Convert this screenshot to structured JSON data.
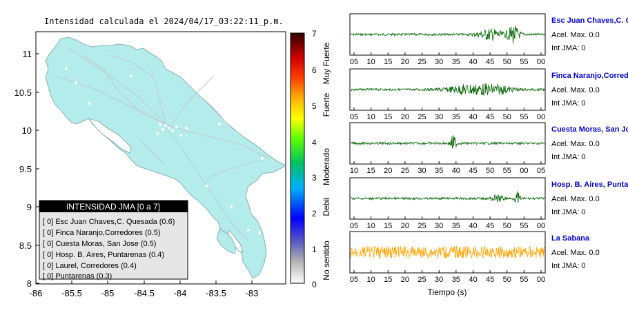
{
  "map": {
    "title": "Intensidad calculada el 2024/04/17_03:22:11_p.m.",
    "lat_ticks": [
      "11",
      "10.5",
      "10",
      "9.5",
      "9",
      "8.5",
      "8"
    ],
    "lon_ticks": [
      "-86",
      "-85.5",
      "-85",
      "-84.5",
      "-84",
      "-83.5",
      "-83"
    ],
    "land_color": "#b4ebeb",
    "legend": {
      "title": "INTENSIDAD JMA [0 a 7]",
      "items": [
        "[ 0]  Esc Juan Chaves,C. Quesada (0.6)",
        "[ 0]  Finca Naranjo,Corredores (0.5)",
        "[ 0]  Cuesta Moras, San Jose (0.5)",
        "[ 0]  Hosp. B. Aires, Puntarenas (0.4)",
        "[ 0]  Laurel, Corredores (0.4)",
        "[ 0]  Puntarenas (0.3)"
      ]
    }
  },
  "colorbar": {
    "ticks": [
      "7",
      "6",
      "5",
      "4",
      "3",
      "2",
      "1",
      "0"
    ],
    "labels": [
      "Muy Fuerte",
      "Fuerte",
      "Moderado",
      "Debil",
      "No sentido"
    ]
  },
  "traces": {
    "stations": [
      {
        "name": "Esc Juan Chaves,C. Quesada",
        "accel": "Acel. Max. 0.0",
        "jma": "Int JMA: 0",
        "color": "#006400",
        "ticks": [
          "05",
          "10",
          "15",
          "20",
          "25",
          "30",
          "35",
          "40",
          "45",
          "50",
          "55",
          "00"
        ]
      },
      {
        "name": "Finca Naranjo,Corredores",
        "accel": "Acel. Max. 0.0",
        "jma": "Int JMA: 0",
        "color": "#006400",
        "ticks": [
          "05",
          "10",
          "15",
          "20",
          "25",
          "30",
          "35",
          "40",
          "45",
          "50",
          "55",
          "00"
        ]
      },
      {
        "name": "Cuesta Moras, San Jose",
        "accel": "Acel. Max. 0.0",
        "jma": "Int JMA: 0",
        "color": "#006400",
        "ticks": [
          "10",
          "15",
          "20",
          "25",
          "30",
          "35",
          "40",
          "45",
          "50",
          "55",
          "00",
          "05"
        ]
      },
      {
        "name": "Hosp. B. Aires, Puntarenas",
        "accel": "Acel. Max. 0.0",
        "jma": "Int JMA: 0",
        "color": "#006400",
        "ticks": [
          "05",
          "10",
          "15",
          "20",
          "25",
          "30",
          "35",
          "40",
          "45",
          "50",
          "55",
          "00"
        ]
      },
      {
        "name": "La Sabana",
        "accel": "Acel. Max. 0.0",
        "jma": "Int JMA: 0",
        "color": "#ffa500",
        "ticks": [
          "05",
          "10",
          "15",
          "20",
          "25",
          "30",
          "35",
          "40",
          "45",
          "50",
          "55",
          "00"
        ]
      }
    ],
    "xlabel": "Tiempo (s)"
  }
}
